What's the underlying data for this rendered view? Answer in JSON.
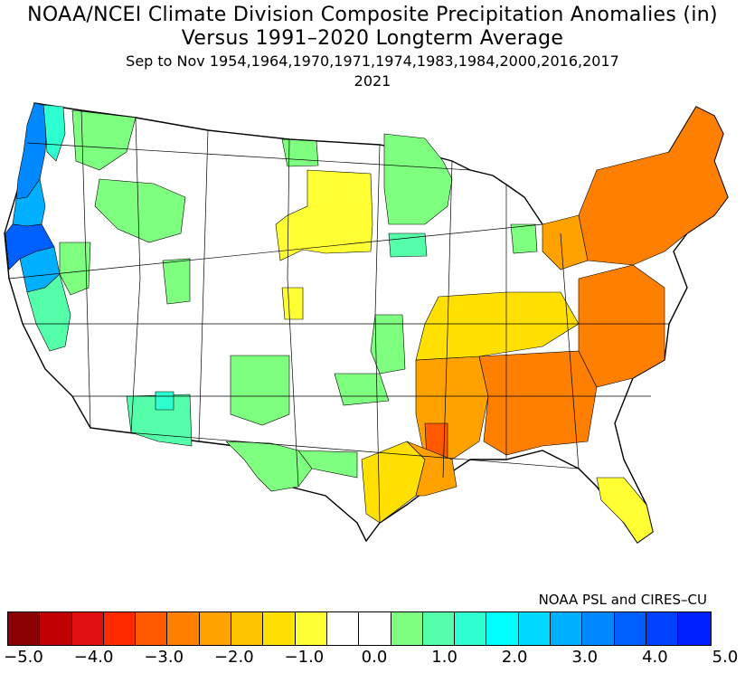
{
  "title": {
    "line1": "NOAA/NCEI Climate Division Composite Precipitation Anomalies (in)",
    "line2": "Versus 1991–2020 Longterm Average",
    "line3": "Sep to Nov  1954,1964,1970,1971,1974,1983,1984,2000,2016,2017",
    "line4": "2021"
  },
  "credit": "NOAA PSL and CIRES–CU",
  "legend": {
    "ticks": [
      "−5.0",
      "−4.0",
      "−3.0",
      "−2.0",
      "−1.0",
      "0.0",
      "1.0",
      "2.0",
      "3.0",
      "4.0",
      "5.0"
    ],
    "colors": [
      "#8b0000",
      "#c00000",
      "#e01010",
      "#ff2a00",
      "#ff5a00",
      "#ff8000",
      "#ffa200",
      "#ffc400",
      "#ffe000",
      "#ffff33",
      "#ffffff",
      "#ffffff",
      "#7fff7f",
      "#55ffaa",
      "#2effd0",
      "#00ffff",
      "#00d8ff",
      "#00b0ff",
      "#0088ff",
      "#0060ff",
      "#0040ff",
      "#0020ff"
    ]
  },
  "map_colors": {
    "background": "#ffffff",
    "outline": "#000000",
    "dry_strong": "#ff8000",
    "dry_moderate": "#ffa200",
    "dry_light": "#ffe000",
    "dry_slight": "#ffff33",
    "wet_light": "#7fff7f",
    "wet_moderate": "#55ffaa",
    "wet_cyan": "#00ffff",
    "wet_blue": "#0088ff",
    "wet_deep": "#0060ff"
  }
}
